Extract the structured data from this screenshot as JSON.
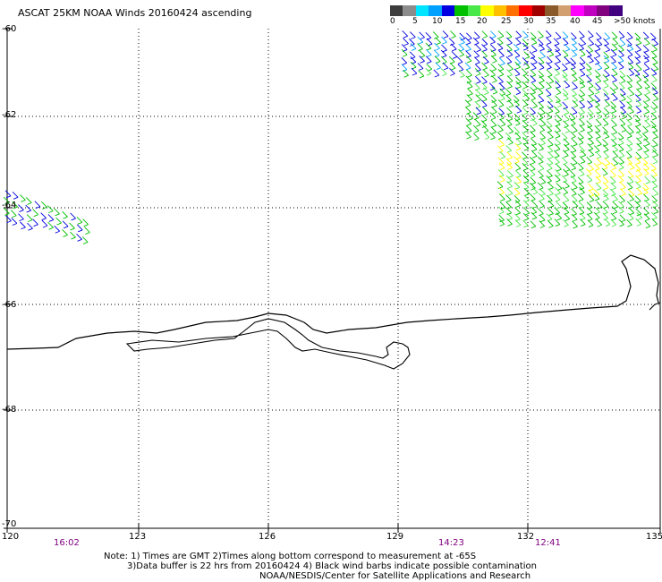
{
  "title": "ASCAT 25KM NOAA Winds 20160424 ascending",
  "legend": {
    "colors": [
      "#3c3c3c",
      "#8c8c8c",
      "#00e5ff",
      "#00a0ff",
      "#0000e0",
      "#00c000",
      "#48e848",
      "#ffff00",
      "#ffc000",
      "#ff7000",
      "#ff0000",
      "#a00000",
      "#8b5a2b",
      "#d2a070",
      "#ff00ff",
      "#c000c0",
      "#800080",
      "#400080"
    ],
    "labels": [
      "0",
      "5",
      "10",
      "15",
      "20",
      "25",
      "30",
      "35",
      "40",
      "45",
      ">50 knots"
    ]
  },
  "lat_labels": [
    "-60",
    "-62",
    "-64",
    "-66",
    "-68",
    "-70"
  ],
  "lon_labels": [
    "120",
    "123",
    "126",
    "129",
    "132",
    "135"
  ],
  "time_labels": [
    "16:02",
    "14:23",
    "12:41"
  ],
  "notes": [
    "Note: 1) Times are GMT 2)Times along bottom correspond to measurement at -65S",
    "3)Data buffer is 22 hrs from 20160424 4) Black wind barbs indicate possible contamination",
    "NOAA/NESDIS/Center for Satellite Applications and Research"
  ],
  "map": {
    "lat_range": [
      -70,
      -60
    ],
    "lon_range": [
      120,
      135
    ]
  }
}
